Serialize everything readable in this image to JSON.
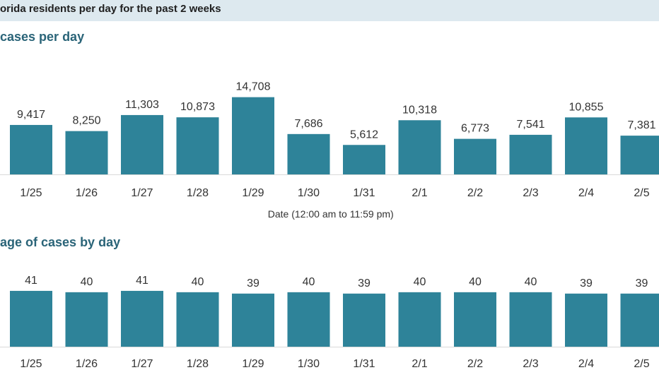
{
  "header": {
    "title": "orida residents per day for the past 2 weeks"
  },
  "colors": {
    "bar": "#2e8399",
    "baseline": "#d9d9d9",
    "header_bg": "#dde9ef",
    "title": "#2a6478"
  },
  "chart_data": [
    {
      "type": "bar",
      "title": "cases per day",
      "xlabel": "Date (12:00 am to 11:59 pm)",
      "ylabel": "",
      "categories": [
        "1/25",
        "1/26",
        "1/27",
        "1/28",
        "1/29",
        "1/30",
        "1/31",
        "2/1",
        "2/2",
        "2/3",
        "2/4",
        "2/5"
      ],
      "values": [
        9417,
        8250,
        11303,
        10873,
        14708,
        7686,
        5612,
        10318,
        6773,
        7541,
        10855,
        7381
      ],
      "value_labels": [
        "9,417",
        "8,250",
        "11,303",
        "10,873",
        "14,708",
        "7,686",
        "5,612",
        "10,318",
        "6,773",
        "7,541",
        "10,855",
        "7,381"
      ],
      "ylim": [
        0,
        16000
      ],
      "grid": false,
      "legend": "none"
    },
    {
      "type": "bar",
      "title": "age of cases by day",
      "xlabel": "",
      "ylabel": "",
      "categories": [
        "1/25",
        "1/26",
        "1/27",
        "1/28",
        "1/29",
        "1/30",
        "1/31",
        "2/1",
        "2/2",
        "2/3",
        "2/4",
        "2/5"
      ],
      "values": [
        41,
        40,
        41,
        40,
        39,
        40,
        39,
        40,
        40,
        40,
        39,
        39
      ],
      "value_labels": [
        "41",
        "40",
        "41",
        "40",
        "39",
        "40",
        "39",
        "40",
        "40",
        "40",
        "39",
        "39"
      ],
      "ylim": [
        0,
        42
      ],
      "grid": false,
      "legend": "none"
    }
  ]
}
